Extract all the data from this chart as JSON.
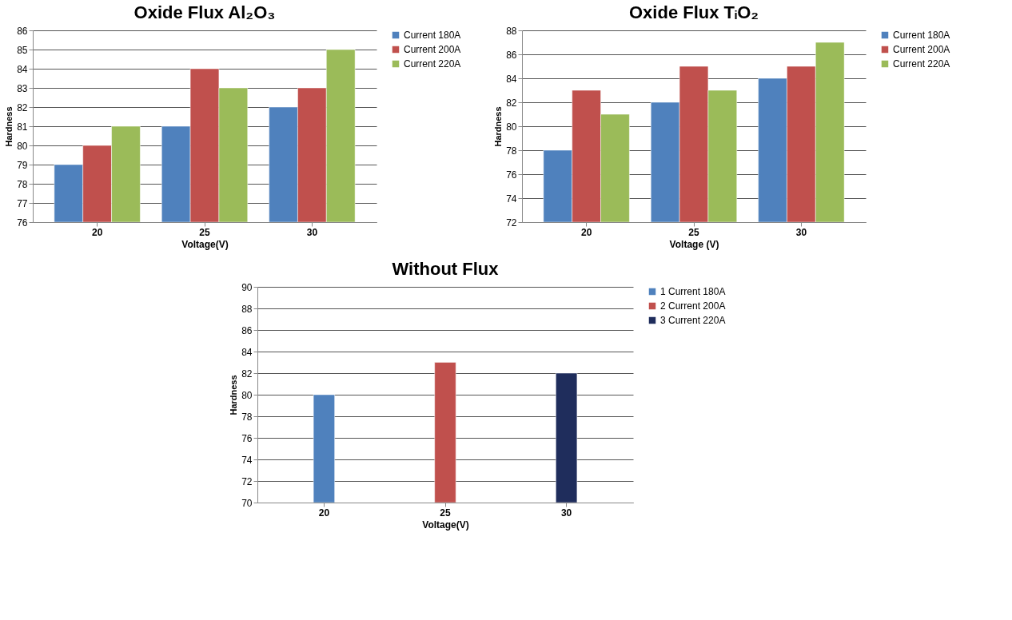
{
  "chart_data": [
    {
      "type": "bar",
      "title": "Oxide Flux Al₂O₃",
      "xlabel": "Voltage(V)",
      "ylabel": "Hardness",
      "categories": [
        "20",
        "25",
        "30"
      ],
      "series": [
        {
          "name": "Current 180A",
          "color": "#4f81bd",
          "values": [
            79,
            81,
            82
          ]
        },
        {
          "name": "Current 200A",
          "color": "#c0504d",
          "values": [
            80,
            84,
            83
          ]
        },
        {
          "name": "Current 220A",
          "color": "#9bbb59",
          "values": [
            81,
            83,
            85
          ]
        }
      ],
      "ylim": [
        76,
        86
      ],
      "yticks": [
        76,
        77,
        78,
        79,
        80,
        81,
        82,
        83,
        84,
        85,
        86
      ],
      "grid": "y",
      "legend": "right"
    },
    {
      "type": "bar",
      "title": "Oxide Flux TᵢO₂",
      "xlabel": "Voltage (V)",
      "ylabel": "Hardness",
      "categories": [
        "20",
        "25",
        "30"
      ],
      "series": [
        {
          "name": "Current 180A",
          "color": "#4f81bd",
          "values": [
            78,
            82,
            84
          ]
        },
        {
          "name": "Current 200A",
          "color": "#c0504d",
          "values": [
            83,
            85,
            85
          ]
        },
        {
          "name": "Current 220A",
          "color": "#9bbb59",
          "values": [
            81,
            83,
            87
          ]
        }
      ],
      "ylim": [
        72,
        88
      ],
      "yticks": [
        72,
        74,
        76,
        78,
        80,
        82,
        84,
        86,
        88
      ],
      "grid": "y",
      "legend": "right"
    },
    {
      "type": "bar",
      "title": "Without Flux",
      "xlabel": "Voltage(V)",
      "ylabel": "Hardness",
      "categories": [
        "20",
        "25",
        "30"
      ],
      "series": [
        {
          "name": "1 Current 180A",
          "color": "#4f81bd",
          "values": [
            80,
            null,
            null
          ]
        },
        {
          "name": "2 Current 200A",
          "color": "#c0504d",
          "values": [
            null,
            83,
            null
          ]
        },
        {
          "name": "3 Current 220A",
          "color": "#1f2d5c",
          "values": [
            null,
            null,
            82
          ]
        }
      ],
      "ylim": [
        70,
        90
      ],
      "yticks": [
        70,
        72,
        74,
        76,
        78,
        80,
        82,
        84,
        86,
        88,
        90
      ],
      "grid": "y",
      "legend": "right"
    }
  ]
}
